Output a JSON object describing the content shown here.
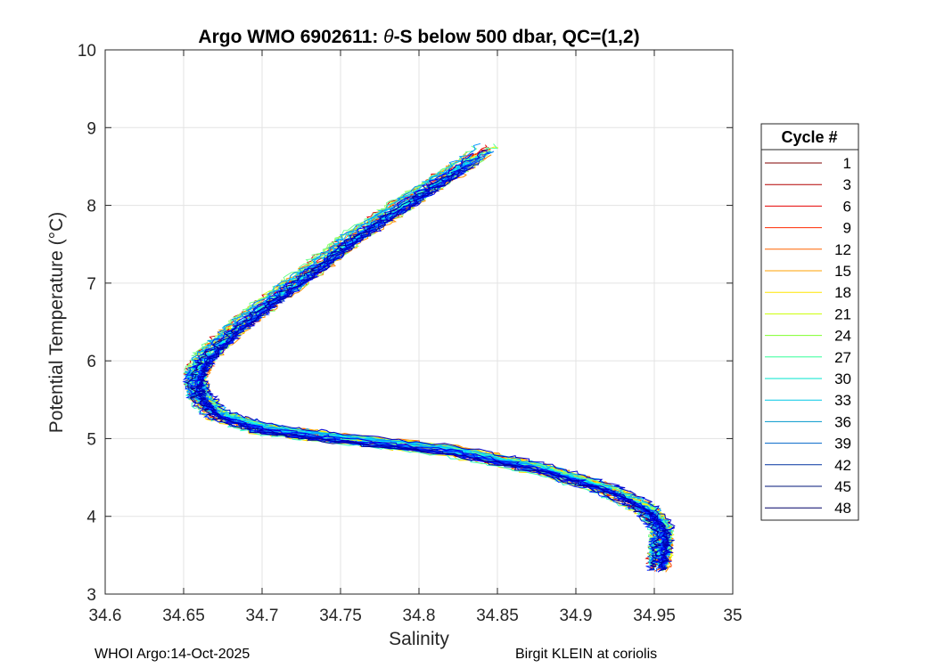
{
  "chart_data": {
    "type": "line",
    "title_prefix": "Argo WMO 6902611: ",
    "title_theta": "θ",
    "title_suffix": "-S below 500 dbar,  QC=(1,2)",
    "xlabel": "Salinity",
    "ylabel": "Potential Temperature (°C)",
    "xlim": [
      34.6,
      35
    ],
    "ylim": [
      3,
      10
    ],
    "xticks": [
      34.6,
      34.65,
      34.7,
      34.75,
      34.8,
      34.85,
      34.9,
      34.95,
      35
    ],
    "xtick_labels": [
      "34.6",
      "34.65",
      "34.7",
      "34.75",
      "34.8",
      "34.85",
      "34.9",
      "34.95",
      "35"
    ],
    "yticks": [
      3,
      4,
      5,
      6,
      7,
      8,
      9,
      10
    ],
    "ytick_labels": [
      "3",
      "4",
      "5",
      "6",
      "7",
      "8",
      "9",
      "10"
    ],
    "grid": true,
    "legend": {
      "title": "Cycle #",
      "placement": "outside-right",
      "entries": [
        "1",
        "3",
        "6",
        "9",
        "12",
        "15",
        "18",
        "21",
        "24",
        "27",
        "30",
        "33",
        "36",
        "39",
        "42",
        "45",
        "48"
      ],
      "colors": [
        "#7f0000",
        "#b30000",
        "#e60000",
        "#ff2a00",
        "#ff6400",
        "#ffa000",
        "#ffe600",
        "#ccff00",
        "#7fff2e",
        "#33ff99",
        "#00e6cc",
        "#00c8e6",
        "#0096cc",
        "#0064c8",
        "#0032a0",
        "#00147a",
        "#000066"
      ]
    },
    "series_count": 50,
    "nominal_profile": [
      {
        "S": 34.845,
        "T": 8.75
      },
      {
        "S": 34.82,
        "T": 8.4
      },
      {
        "S": 34.79,
        "T": 8.0
      },
      {
        "S": 34.76,
        "T": 7.6
      },
      {
        "S": 34.735,
        "T": 7.2
      },
      {
        "S": 34.708,
        "T": 6.8
      },
      {
        "S": 34.683,
        "T": 6.4
      },
      {
        "S": 34.665,
        "T": 6.05
      },
      {
        "S": 34.658,
        "T": 5.8
      },
      {
        "S": 34.66,
        "T": 5.55
      },
      {
        "S": 34.672,
        "T": 5.3
      },
      {
        "S": 34.7,
        "T": 5.13
      },
      {
        "S": 34.75,
        "T": 5.0
      },
      {
        "S": 34.82,
        "T": 4.85
      },
      {
        "S": 34.88,
        "T": 4.6
      },
      {
        "S": 34.92,
        "T": 4.35
      },
      {
        "S": 34.945,
        "T": 4.1
      },
      {
        "S": 34.955,
        "T": 3.85
      },
      {
        "S": 34.955,
        "T": 3.6
      },
      {
        "S": 34.953,
        "T": 3.35
      }
    ]
  },
  "footer": {
    "left": "WHOI Argo:14-Oct-2025",
    "right": "Birgit KLEIN at coriolis"
  }
}
